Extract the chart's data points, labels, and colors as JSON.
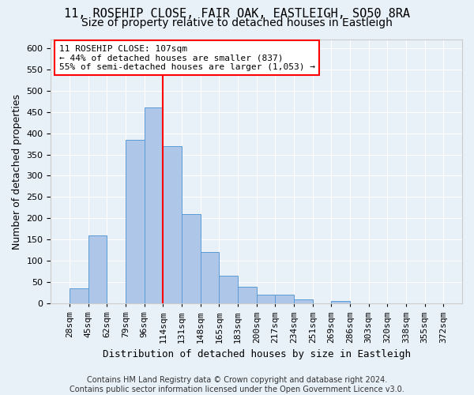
{
  "title_line1": "11, ROSEHIP CLOSE, FAIR OAK, EASTLEIGH, SO50 8RA",
  "title_line2": "Size of property relative to detached houses in Eastleigh",
  "xlabel": "Distribution of detached houses by size in Eastleigh",
  "ylabel": "Number of detached properties",
  "bar_values": [
    35,
    160,
    0,
    385,
    460,
    370,
    210,
    120,
    65,
    40,
    20,
    20,
    10,
    0,
    5,
    0,
    0,
    0,
    0,
    0
  ],
  "bin_labels": [
    "28sqm",
    "45sqm",
    "62sqm",
    "79sqm",
    "96sqm",
    "114sqm",
    "131sqm",
    "148sqm",
    "165sqm",
    "183sqm",
    "200sqm",
    "217sqm",
    "234sqm",
    "251sqm",
    "269sqm",
    "286sqm",
    "303sqm",
    "320sqm",
    "338sqm",
    "355sqm",
    "372sqm"
  ],
  "bar_color": "#aec6e8",
  "bar_edge_color": "#5b9bd5",
  "vertical_line_color": "red",
  "annotation_text": "11 ROSEHIP CLOSE: 107sqm\n← 44% of detached houses are smaller (837)\n55% of semi-detached houses are larger (1,053) →",
  "annotation_box_color": "white",
  "annotation_box_edge_color": "red",
  "ylim": [
    0,
    620
  ],
  "yticks": [
    0,
    50,
    100,
    150,
    200,
    250,
    300,
    350,
    400,
    450,
    500,
    550,
    600
  ],
  "footer_line1": "Contains HM Land Registry data © Crown copyright and database right 2024.",
  "footer_line2": "Contains public sector information licensed under the Open Government Licence v3.0.",
  "background_color": "#e8f0f8",
  "plot_bg_color": "#e8f0f8",
  "title_fontsize": 11,
  "subtitle_fontsize": 10,
  "axis_label_fontsize": 9,
  "tick_fontsize": 8,
  "footer_fontsize": 7,
  "vline_x_bar_index": 5
}
